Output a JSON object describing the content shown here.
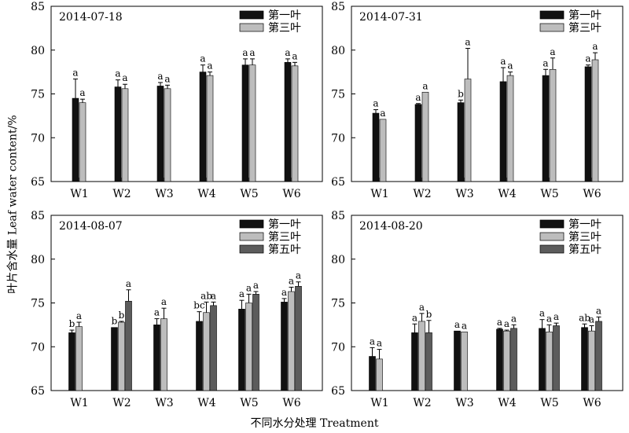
{
  "figure": {
    "ylabel": "叶片含水量 Leaf water content/%",
    "xlabel": "不同水分处理 Treatment"
  },
  "colors": {
    "第一叶": "#111111",
    "第三叶": "#bdbdbd",
    "第五叶": "#5c5c5c"
  },
  "chart_data": [
    {
      "type": "bar",
      "title": "2014-07-18",
      "categories": [
        "W1",
        "W2",
        "W3",
        "W4",
        "W5",
        "W6"
      ],
      "ylim": [
        65,
        85
      ],
      "yticks": [
        65,
        70,
        75,
        80,
        85
      ],
      "legend_position": "top-right",
      "series": [
        {
          "name": "第一叶",
          "values": [
            74.5,
            75.8,
            75.9,
            77.5,
            78.3,
            78.6
          ],
          "errors": [
            2.2,
            0.8,
            0.4,
            0.8,
            0.7,
            0.4
          ],
          "labels": [
            "a",
            "a",
            "a",
            "a",
            "a",
            "a"
          ]
        },
        {
          "name": "第三叶",
          "values": [
            74.0,
            75.6,
            75.6,
            77.1,
            78.3,
            78.2
          ],
          "errors": [
            0.4,
            0.5,
            0.4,
            0.4,
            0.7,
            0.4
          ],
          "labels": [
            "a",
            "a",
            "a",
            "a",
            "a",
            "a"
          ]
        }
      ]
    },
    {
      "type": "bar",
      "title": "2014-07-31",
      "categories": [
        "W1",
        "W2",
        "W3",
        "W4",
        "W5",
        "W6"
      ],
      "ylim": [
        65,
        85
      ],
      "yticks": [
        65,
        70,
        75,
        80,
        85
      ],
      "legend_position": "top-right",
      "series": [
        {
          "name": "第一叶",
          "values": [
            72.8,
            73.8,
            74.0,
            76.4,
            77.1,
            78.1
          ],
          "errors": [
            0.4,
            0.1,
            0.3,
            1.6,
            0.7,
            0.2
          ],
          "labels": [
            "a",
            "a",
            "b",
            "a",
            "a",
            "a"
          ]
        },
        {
          "name": "第三叶",
          "values": [
            72.1,
            75.2,
            76.7,
            77.1,
            77.8,
            78.9
          ],
          "errors": [
            0.0,
            0.0,
            3.5,
            0.4,
            1.3,
            0.8
          ],
          "labels": [
            "a",
            "a",
            "a",
            "a",
            "a",
            "a"
          ]
        }
      ]
    },
    {
      "type": "bar",
      "title": "2014-08-07",
      "categories": [
        "W1",
        "W2",
        "W3",
        "W4",
        "W5",
        "W6"
      ],
      "ylim": [
        65,
        85
      ],
      "yticks": [
        65,
        70,
        75,
        80,
        85
      ],
      "legend_position": "top-right",
      "series": [
        {
          "name": "第一叶",
          "values": [
            71.6,
            72.2,
            72.5,
            72.9,
            74.3,
            75.1
          ],
          "errors": [
            0.3,
            0.0,
            0.7,
            1.1,
            1.0,
            0.4
          ],
          "labels": [
            "b",
            "b",
            "a",
            "bc",
            "a",
            "a"
          ]
        },
        {
          "name": "第三叶",
          "values": [
            72.3,
            72.8,
            73.2,
            73.9,
            75.0,
            76.3
          ],
          "errors": [
            0.5,
            0.1,
            1.2,
            1.2,
            1.0,
            0.5
          ],
          "labels": [
            "a",
            "b",
            "a",
            "ab",
            "a",
            "a"
          ]
        },
        {
          "name": "第五叶",
          "values": [
            null,
            75.2,
            null,
            74.7,
            76.0,
            76.9
          ],
          "errors": [
            0,
            1.3,
            0,
            0.4,
            0.3,
            0.5
          ],
          "labels": [
            "",
            "a",
            "",
            "a",
            "a",
            "a"
          ]
        }
      ]
    },
    {
      "type": "bar",
      "title": "2014-08-20",
      "categories": [
        "W1",
        "W2",
        "W3",
        "W4",
        "W5",
        "W6"
      ],
      "ylim": [
        65,
        85
      ],
      "yticks": [
        65,
        70,
        75,
        80,
        85
      ],
      "legend_position": "top-right",
      "series": [
        {
          "name": "第一叶",
          "values": [
            68.9,
            71.6,
            71.8,
            72.0,
            72.1,
            72.2
          ],
          "errors": [
            1.0,
            1.0,
            0.0,
            0.1,
            1.0,
            0.4
          ],
          "labels": [
            "a",
            "a",
            "a",
            "a",
            "a",
            "ab"
          ]
        },
        {
          "name": "第三叶",
          "values": [
            68.6,
            72.9,
            71.7,
            71.8,
            71.7,
            71.8
          ],
          "errors": [
            1.1,
            0.9,
            0.0,
            0.1,
            0.8,
            0.6
          ],
          "labels": [
            "a",
            "a",
            "a",
            "a",
            "a",
            "a"
          ]
        },
        {
          "name": "第五叶",
          "values": [
            null,
            71.6,
            null,
            72.1,
            72.4,
            72.9
          ],
          "errors": [
            0,
            1.4,
            0,
            0.4,
            0.3,
            0.5
          ],
          "labels": [
            "",
            "b",
            "",
            "a",
            "a",
            "a"
          ]
        }
      ]
    }
  ]
}
